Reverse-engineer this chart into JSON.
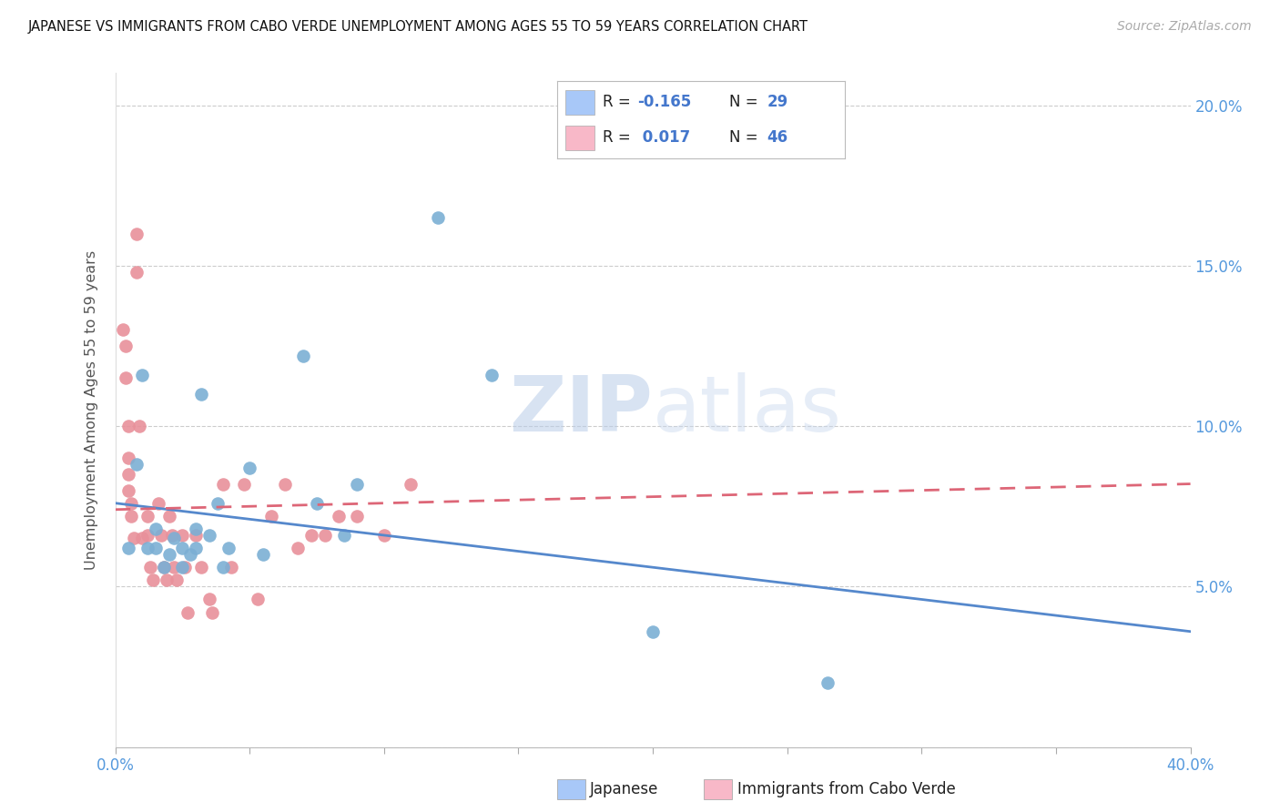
{
  "title": "JAPANESE VS IMMIGRANTS FROM CABO VERDE UNEMPLOYMENT AMONG AGES 55 TO 59 YEARS CORRELATION CHART",
  "source": "Source: ZipAtlas.com",
  "ylabel": "Unemployment Among Ages 55 to 59 years",
  "xlim": [
    0.0,
    0.4
  ],
  "ylim": [
    0.0,
    0.21
  ],
  "xticks": [
    0.0,
    0.05,
    0.1,
    0.15,
    0.2,
    0.25,
    0.3,
    0.35,
    0.4
  ],
  "xticklabels": [
    "0.0%",
    "",
    "",
    "",
    "",
    "",
    "",
    "",
    "40.0%"
  ],
  "yticks": [
    0.0,
    0.05,
    0.1,
    0.15,
    0.2
  ],
  "yticklabels_right": [
    "",
    "5.0%",
    "10.0%",
    "15.0%",
    "20.0%"
  ],
  "legend_r_blue": "-0.165",
  "legend_n_blue": "29",
  "legend_r_pink": "0.017",
  "legend_n_pink": "46",
  "blue_fill": "#a8c8f8",
  "pink_fill": "#f8b8c8",
  "blue_scatter": "#7bafd4",
  "pink_scatter": "#e8909a",
  "trendline_blue": "#5588cc",
  "trendline_pink": "#dd6677",
  "blue_trend_start": 0.076,
  "blue_trend_end": 0.036,
  "pink_trend_start": 0.074,
  "pink_trend_end": 0.082,
  "watermark_color": "#ccd8ee",
  "japanese_x": [
    0.005,
    0.008,
    0.01,
    0.012,
    0.015,
    0.015,
    0.018,
    0.02,
    0.022,
    0.025,
    0.025,
    0.028,
    0.03,
    0.03,
    0.032,
    0.035,
    0.038,
    0.04,
    0.042,
    0.05,
    0.055,
    0.07,
    0.075,
    0.085,
    0.09,
    0.12,
    0.14,
    0.2,
    0.265
  ],
  "japanese_y": [
    0.062,
    0.088,
    0.116,
    0.062,
    0.062,
    0.068,
    0.056,
    0.06,
    0.065,
    0.056,
    0.062,
    0.06,
    0.062,
    0.068,
    0.11,
    0.066,
    0.076,
    0.056,
    0.062,
    0.087,
    0.06,
    0.122,
    0.076,
    0.066,
    0.082,
    0.165,
    0.116,
    0.036,
    0.02
  ],
  "caboverde_x": [
    0.003,
    0.004,
    0.004,
    0.005,
    0.005,
    0.005,
    0.005,
    0.006,
    0.006,
    0.007,
    0.008,
    0.008,
    0.009,
    0.01,
    0.012,
    0.012,
    0.013,
    0.014,
    0.016,
    0.017,
    0.018,
    0.019,
    0.02,
    0.021,
    0.022,
    0.023,
    0.025,
    0.026,
    0.027,
    0.03,
    0.032,
    0.035,
    0.036,
    0.04,
    0.043,
    0.048,
    0.053,
    0.058,
    0.063,
    0.068,
    0.073,
    0.078,
    0.083,
    0.09,
    0.1,
    0.11
  ],
  "caboverde_y": [
    0.13,
    0.125,
    0.115,
    0.1,
    0.09,
    0.085,
    0.08,
    0.076,
    0.072,
    0.065,
    0.16,
    0.148,
    0.1,
    0.065,
    0.072,
    0.066,
    0.056,
    0.052,
    0.076,
    0.066,
    0.056,
    0.052,
    0.072,
    0.066,
    0.056,
    0.052,
    0.066,
    0.056,
    0.042,
    0.066,
    0.056,
    0.046,
    0.042,
    0.082,
    0.056,
    0.082,
    0.046,
    0.072,
    0.082,
    0.062,
    0.066,
    0.066,
    0.072,
    0.072,
    0.066,
    0.082
  ]
}
